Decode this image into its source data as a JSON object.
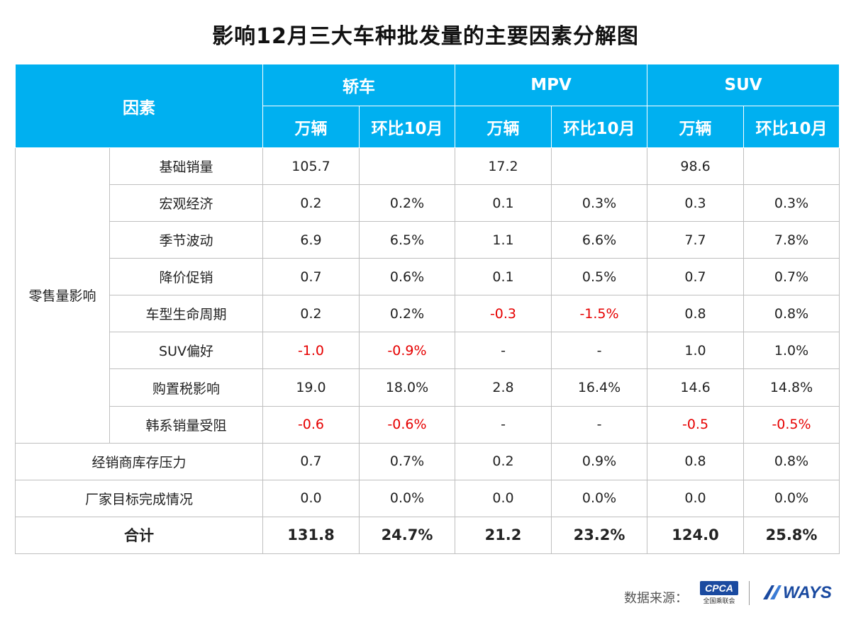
{
  "title": "影响12月三大车种批发量的主要因素分解图",
  "chart_data": {
    "type": "table",
    "title": "影响12月三大车种批发量的主要因素分解图",
    "factor_header": "因素",
    "groups": [
      "轿车",
      "MPV",
      "SUV"
    ],
    "sub_headers": [
      "万辆",
      "环比10月"
    ],
    "retail_group_label": "零售量影响",
    "rows": [
      {
        "label": "基础销量",
        "values": [
          "105.7",
          "",
          "17.2",
          "",
          "98.6",
          ""
        ],
        "negative": [
          false,
          false,
          false,
          false,
          false,
          false
        ]
      },
      {
        "label": "宏观经济",
        "values": [
          "0.2",
          "0.2%",
          "0.1",
          "0.3%",
          "0.3",
          "0.3%"
        ],
        "negative": [
          false,
          false,
          false,
          false,
          false,
          false
        ]
      },
      {
        "label": "季节波动",
        "values": [
          "6.9",
          "6.5%",
          "1.1",
          "6.6%",
          "7.7",
          "7.8%"
        ],
        "negative": [
          false,
          false,
          false,
          false,
          false,
          false
        ]
      },
      {
        "label": "降价促销",
        "values": [
          "0.7",
          "0.6%",
          "0.1",
          "0.5%",
          "0.7",
          "0.7%"
        ],
        "negative": [
          false,
          false,
          false,
          false,
          false,
          false
        ]
      },
      {
        "label": "车型生命周期",
        "values": [
          "0.2",
          "0.2%",
          "-0.3",
          "-1.5%",
          "0.8",
          "0.8%"
        ],
        "negative": [
          false,
          false,
          true,
          true,
          false,
          false
        ]
      },
      {
        "label": "SUV偏好",
        "values": [
          "-1.0",
          "-0.9%",
          "-",
          "-",
          "1.0",
          "1.0%"
        ],
        "negative": [
          true,
          true,
          false,
          false,
          false,
          false
        ]
      },
      {
        "label": "购置税影响",
        "values": [
          "19.0",
          "18.0%",
          "2.8",
          "16.4%",
          "14.6",
          "14.8%"
        ],
        "negative": [
          false,
          false,
          false,
          false,
          false,
          false
        ]
      },
      {
        "label": "韩系销量受阻",
        "values": [
          "-0.6",
          "-0.6%",
          "-",
          "-",
          "-0.5",
          "-0.5%"
        ],
        "negative": [
          true,
          true,
          false,
          false,
          true,
          true
        ]
      }
    ],
    "other_rows": [
      {
        "label": "经销商库存压力",
        "values": [
          "0.7",
          "0.7%",
          "0.2",
          "0.9%",
          "0.8",
          "0.8%"
        ],
        "negative": [
          false,
          false,
          false,
          false,
          false,
          false
        ]
      },
      {
        "label": "厂家目标完成情况",
        "values": [
          "0.0",
          "0.0%",
          "0.0",
          "0.0%",
          "0.0",
          "0.0%"
        ],
        "negative": [
          false,
          false,
          false,
          false,
          false,
          false
        ]
      }
    ],
    "total": {
      "label": "合计",
      "values": [
        "131.8",
        "24.7%",
        "21.2",
        "23.2%",
        "124.0",
        "25.8%"
      ]
    }
  },
  "footer": {
    "source_label": "数据来源：",
    "cpca_logo_text": "CPCA",
    "cpca_logo_sub": "全国乘联会",
    "ways_logo_text": "WAYS"
  },
  "colors": {
    "header_bg": "#00b0f0",
    "negative": "#e60000",
    "logo_blue": "#1a4aa0"
  }
}
